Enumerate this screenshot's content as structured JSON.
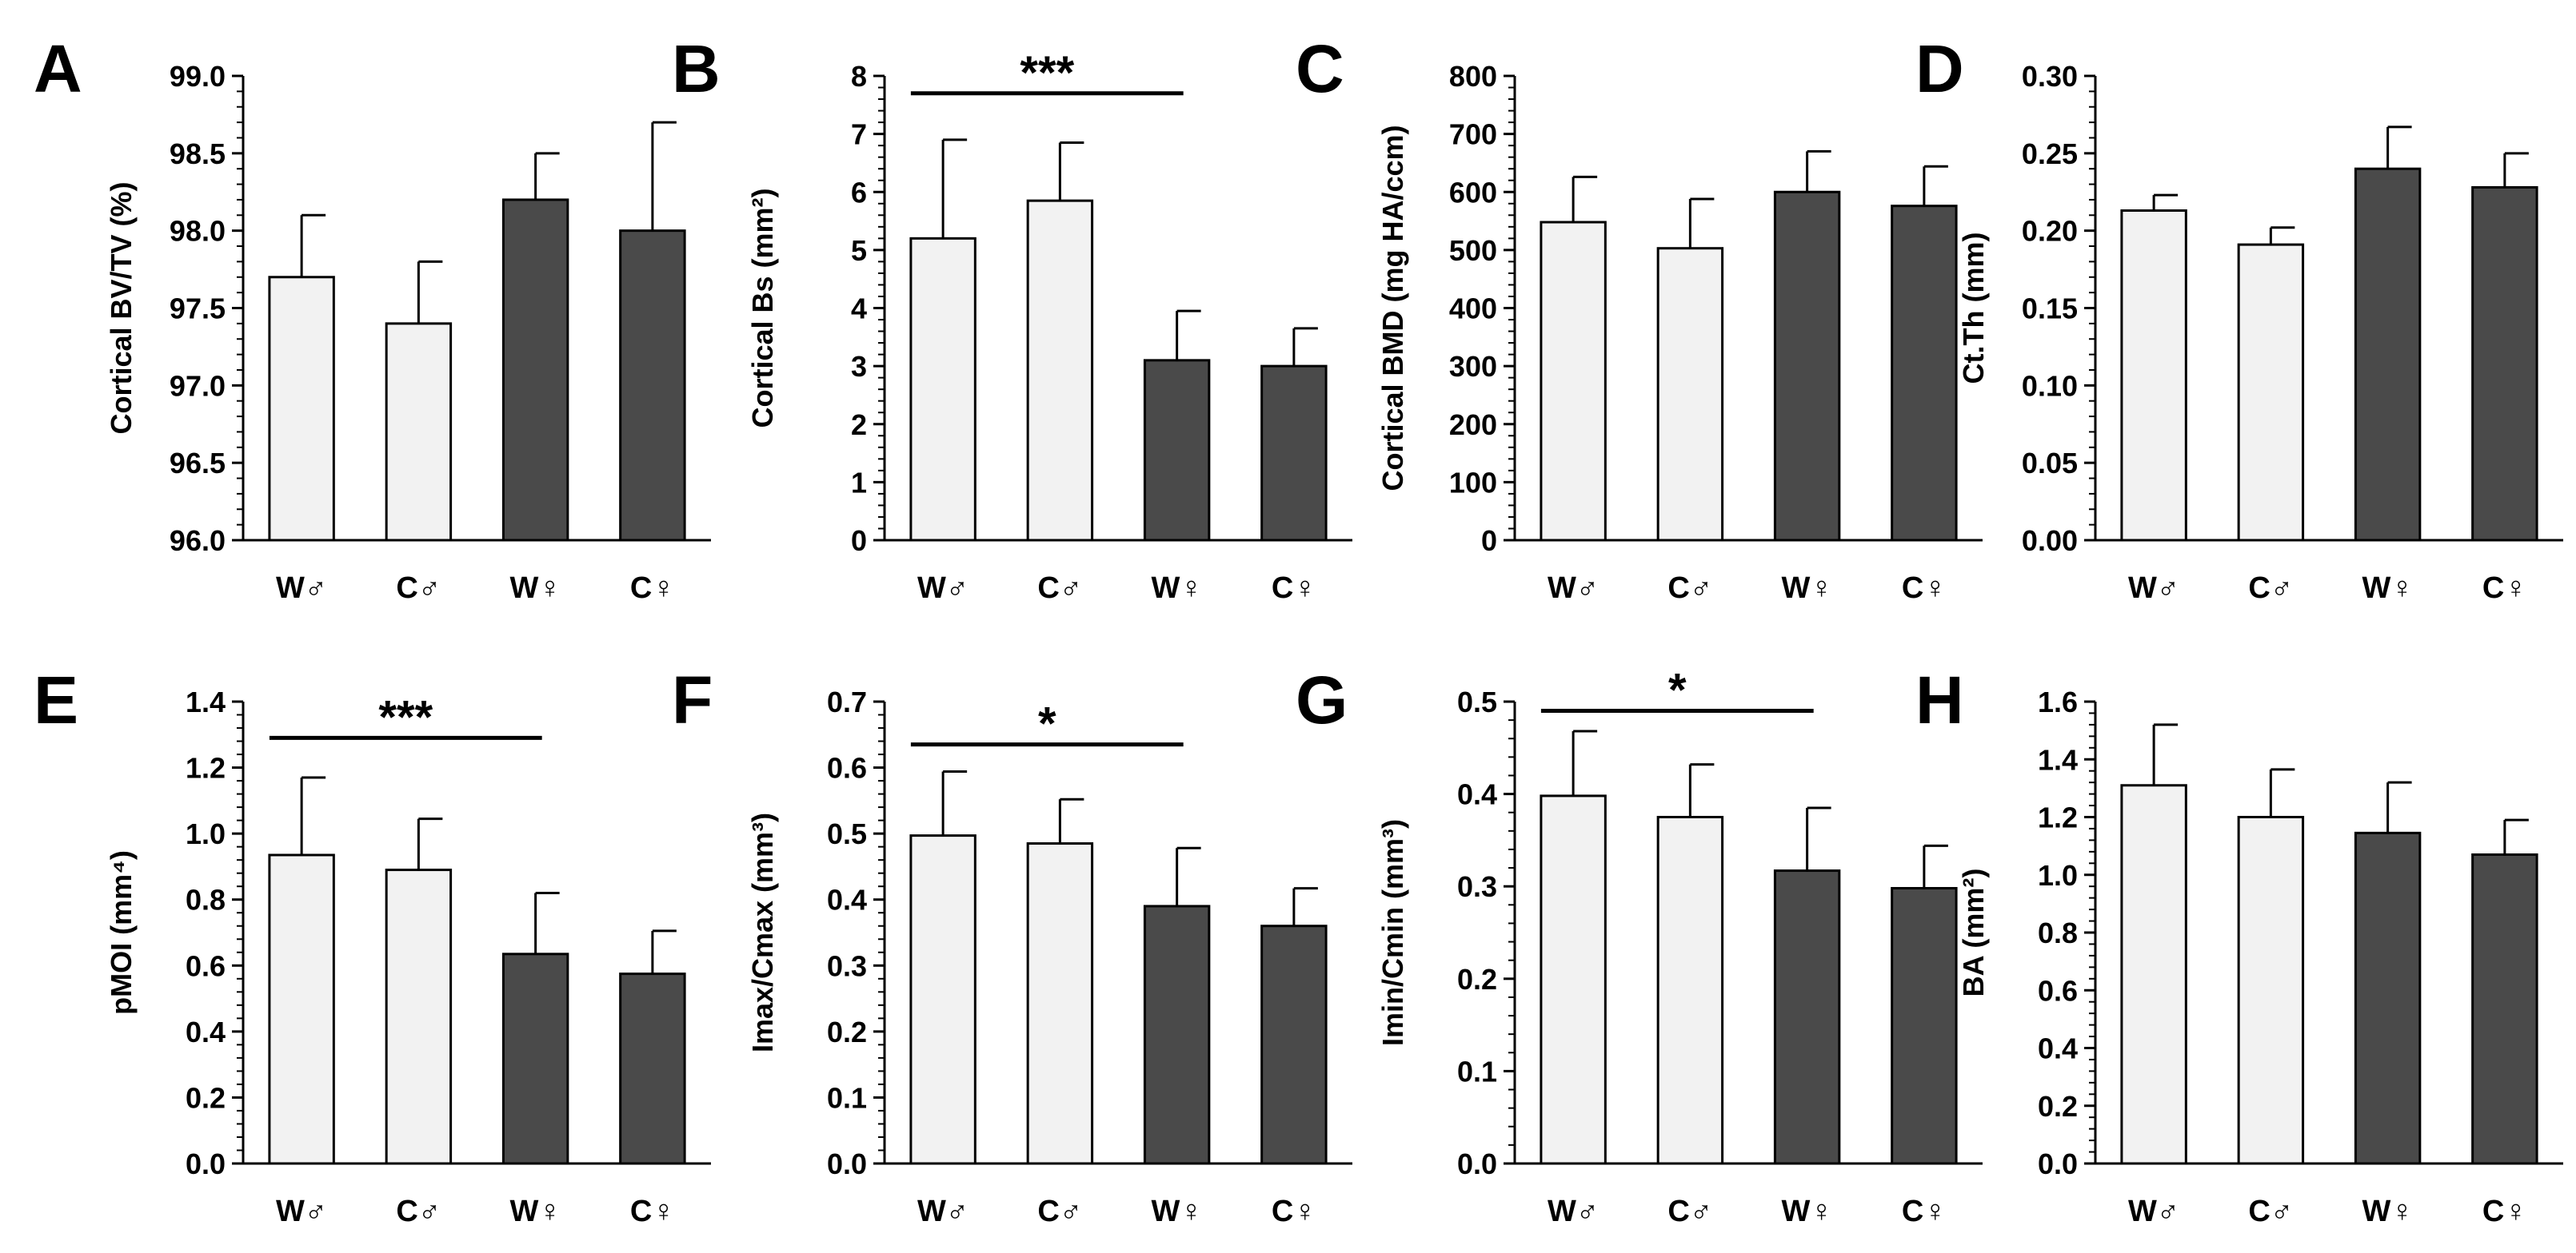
{
  "colors": {
    "light_bar": "#f2f2f2",
    "dark_bar": "#4a4a4a",
    "axis": "#000000"
  },
  "chart_data": [
    {
      "type": "bar",
      "panel": "A",
      "categories": [
        "W♂",
        "C♂",
        "W♀",
        "C♀"
      ],
      "values": [
        97.7,
        97.4,
        98.2,
        98.0
      ],
      "errors": [
        0.4,
        0.4,
        0.3,
        0.7
      ],
      "ylabel": "Cortical BV/TV (%)",
      "ylim": [
        96.0,
        99.0
      ],
      "yticks": [
        "96.0",
        "96.5",
        "97.0",
        "97.5",
        "98.0",
        "98.5",
        "99.0"
      ],
      "significance": null
    },
    {
      "type": "bar",
      "panel": "B",
      "categories": [
        "W♂",
        "C♂",
        "W♀",
        "C♀"
      ],
      "values": [
        5.2,
        5.85,
        3.1,
        3.0
      ],
      "errors": [
        1.7,
        1.0,
        0.85,
        0.65
      ],
      "ylabel": "Cortical Bs (mm²)",
      "ylim": [
        0,
        8
      ],
      "yticks": [
        "0",
        "1",
        "2",
        "3",
        "4",
        "5",
        "6",
        "7",
        "8"
      ],
      "significance": {
        "label": "***",
        "from": 0,
        "to": 2,
        "y": 7.7
      }
    },
    {
      "type": "bar",
      "panel": "C",
      "categories": [
        "W♂",
        "C♂",
        "W♀",
        "C♀"
      ],
      "values": [
        548,
        503,
        600,
        576
      ],
      "errors": [
        78,
        85,
        70,
        68
      ],
      "ylabel": "Cortical BMD (mg HA/ccm)",
      "ylim": [
        0,
        800
      ],
      "yticks": [
        "0",
        "100",
        "200",
        "300",
        "400",
        "500",
        "600",
        "700",
        "800"
      ],
      "significance": null
    },
    {
      "type": "bar",
      "panel": "D",
      "categories": [
        "W♂",
        "C♂",
        "W♀",
        "C♀"
      ],
      "values": [
        0.213,
        0.191,
        0.24,
        0.228
      ],
      "errors": [
        0.01,
        0.011,
        0.027,
        0.022
      ],
      "ylabel": "Ct.Th (mm)",
      "ylim": [
        0,
        0.3
      ],
      "yticks": [
        "0.00",
        "0.05",
        "0.10",
        "0.15",
        "0.20",
        "0.25",
        "0.30"
      ],
      "significance": null
    },
    {
      "type": "bar",
      "panel": "E",
      "categories": [
        "W♂",
        "C♂",
        "W♀",
        "C♀"
      ],
      "values": [
        0.935,
        0.89,
        0.635,
        0.575
      ],
      "errors": [
        0.235,
        0.155,
        0.185,
        0.13
      ],
      "ylabel": "pMOI (mm⁴)",
      "ylim": [
        0,
        1.4
      ],
      "yticks": [
        "0.0",
        "0.2",
        "0.4",
        "0.6",
        "0.8",
        "1.0",
        "1.2",
        "1.4"
      ],
      "significance": {
        "label": "***",
        "from": 0,
        "to": 2,
        "y": 1.29
      }
    },
    {
      "type": "bar",
      "panel": "F",
      "categories": [
        "W♂",
        "C♂",
        "W♀",
        "C♀"
      ],
      "values": [
        0.497,
        0.485,
        0.39,
        0.36
      ],
      "errors": [
        0.097,
        0.067,
        0.088,
        0.057
      ],
      "ylabel": "Imax/Cmax (mm³)",
      "ylim": [
        0,
        0.7
      ],
      "yticks": [
        "0.0",
        "0.1",
        "0.2",
        "0.3",
        "0.4",
        "0.5",
        "0.6",
        "0.7"
      ],
      "significance": {
        "label": "*",
        "from": 0,
        "to": 2,
        "y": 0.635
      }
    },
    {
      "type": "bar",
      "panel": "G",
      "categories": [
        "W♂",
        "C♂",
        "W♀",
        "C♀"
      ],
      "values": [
        0.398,
        0.375,
        0.317,
        0.298
      ],
      "errors": [
        0.07,
        0.057,
        0.068,
        0.046
      ],
      "ylabel": "Imin/Cmin (mm³)",
      "ylim": [
        0,
        0.5
      ],
      "yticks": [
        "0.0",
        "0.1",
        "0.2",
        "0.3",
        "0.4",
        "0.5"
      ],
      "significance": {
        "label": "*",
        "from": 0,
        "to": 2,
        "y": 0.49
      }
    },
    {
      "type": "bar",
      "panel": "H",
      "categories": [
        "W♂",
        "C♂",
        "W♀",
        "C♀"
      ],
      "values": [
        1.31,
        1.2,
        1.145,
        1.07
      ],
      "errors": [
        0.21,
        0.165,
        0.175,
        0.12
      ],
      "ylabel": "BA (mm²)",
      "ylim": [
        0,
        1.6
      ],
      "yticks": [
        "0.0",
        "0.2",
        "0.4",
        "0.6",
        "0.8",
        "1.0",
        "1.2",
        "1.4",
        "1.6"
      ],
      "significance": null
    }
  ]
}
